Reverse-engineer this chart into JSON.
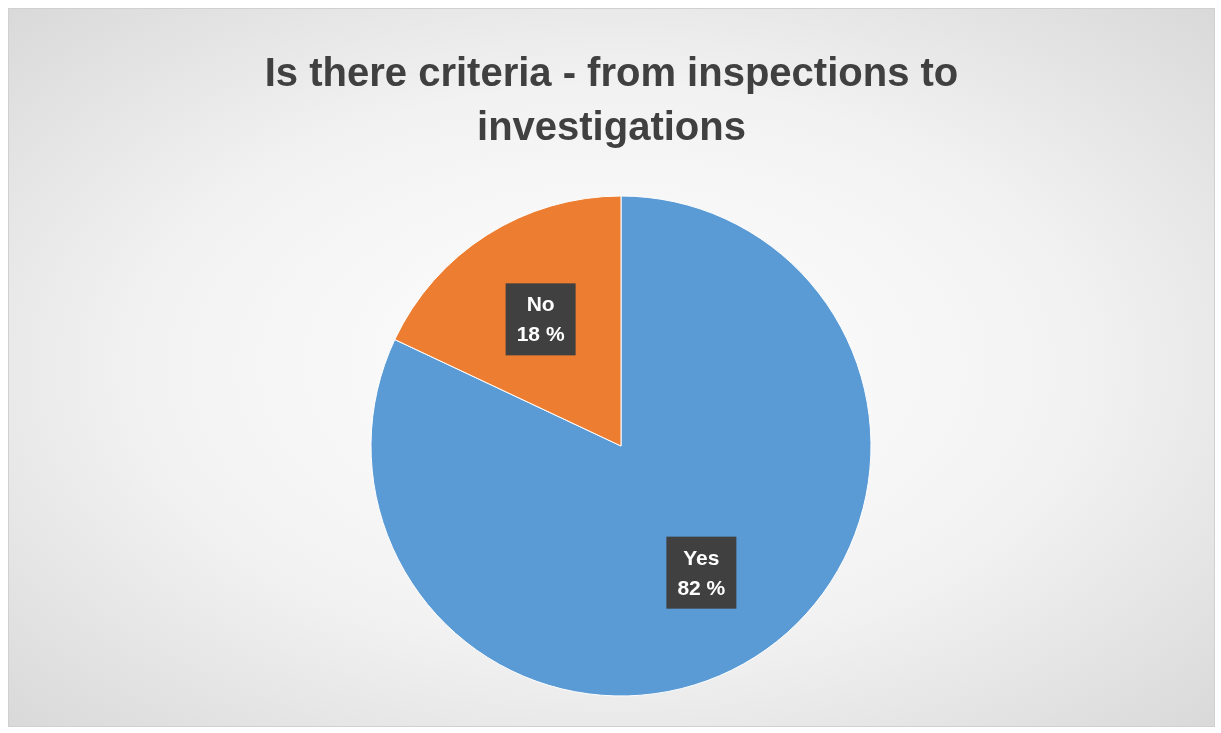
{
  "chart_data": {
    "type": "pie",
    "title": "Is there criteria - from inspections to investigations",
    "categories": [
      "Yes",
      "No"
    ],
    "values": [
      82,
      18
    ],
    "colors": [
      "#5b9bd5",
      "#ed7d31"
    ],
    "value_labels": [
      "82 %",
      "18 %"
    ]
  }
}
